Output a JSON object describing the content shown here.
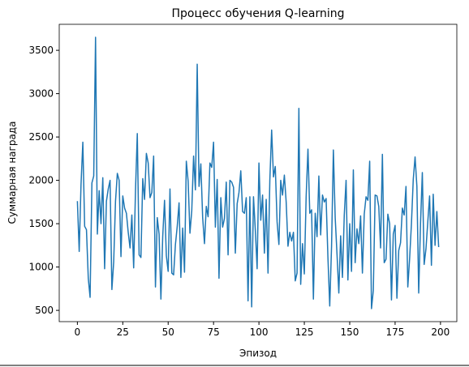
{
  "chart_data": {
    "type": "line",
    "title": "Процесс обучения Q-learning",
    "xlabel": "Эпизод",
    "ylabel": "Суммарная награда",
    "x": [
      0,
      1,
      2,
      3,
      4,
      5,
      6,
      7,
      8,
      9,
      10,
      11,
      12,
      13,
      14,
      15,
      16,
      17,
      18,
      19,
      20,
      21,
      22,
      23,
      24,
      25,
      26,
      27,
      28,
      29,
      30,
      31,
      32,
      33,
      34,
      35,
      36,
      37,
      38,
      39,
      40,
      41,
      42,
      43,
      44,
      45,
      46,
      47,
      48,
      49,
      50,
      51,
      52,
      53,
      54,
      55,
      56,
      57,
      58,
      59,
      60,
      61,
      62,
      63,
      64,
      65,
      66,
      67,
      68,
      69,
      70,
      71,
      72,
      73,
      74,
      75,
      76,
      77,
      78,
      79,
      80,
      81,
      82,
      83,
      84,
      85,
      86,
      87,
      88,
      89,
      90,
      91,
      92,
      93,
      94,
      95,
      96,
      97,
      98,
      99,
      100,
      101,
      102,
      103,
      104,
      105,
      106,
      107,
      108,
      109,
      110,
      111,
      112,
      113,
      114,
      115,
      116,
      117,
      118,
      119,
      120,
      121,
      122,
      123,
      124,
      125,
      126,
      127,
      128,
      129,
      130,
      131,
      132,
      133,
      134,
      135,
      136,
      137,
      138,
      139,
      140,
      141,
      142,
      143,
      144,
      145,
      146,
      147,
      148,
      149,
      150,
      151,
      152,
      153,
      154,
      155,
      156,
      157,
      158,
      159,
      160,
      161,
      162,
      163,
      164,
      165,
      166,
      167,
      168,
      169,
      170,
      171,
      172,
      173,
      174,
      175,
      176,
      177,
      178,
      179,
      180,
      181,
      182,
      183,
      184,
      185,
      186,
      187,
      188,
      189,
      190,
      191,
      192,
      193,
      194,
      195,
      196,
      197,
      198,
      199
    ],
    "series": [
      {
        "name": "Суммарная награда",
        "color": "#1f77b4",
        "values": [
          1760,
          1180,
          1950,
          2440,
          1470,
          1430,
          870,
          650,
          1970,
          2050,
          3650,
          1380,
          1880,
          1500,
          2030,
          980,
          1760,
          1900,
          2000,
          740,
          1060,
          1760,
          2080,
          2000,
          1120,
          1820,
          1680,
          1620,
          1400,
          1220,
          1600,
          990,
          1880,
          2540,
          1140,
          1110,
          2020,
          1780,
          2310,
          2200,
          1800,
          1860,
          2280,
          770,
          1570,
          1380,
          630,
          1350,
          1770,
          1130,
          950,
          1900,
          930,
          910,
          1260,
          1470,
          1740,
          880,
          1450,
          940,
          2220,
          1990,
          1390,
          1650,
          2280,
          1890,
          3340,
          1930,
          2190,
          1570,
          1270,
          1700,
          1580,
          2200,
          2150,
          2440,
          1460,
          2010,
          870,
          1800,
          1460,
          1560,
          1980,
          1140,
          2000,
          1980,
          1920,
          1160,
          1730,
          1860,
          2110,
          1640,
          1620,
          1800,
          610,
          1810,
          540,
          1810,
          1430,
          980,
          2200,
          1540,
          1830,
          1160,
          1780,
          930,
          2000,
          2580,
          2040,
          2160,
          1520,
          1260,
          2000,
          1830,
          2060,
          1750,
          1240,
          1400,
          1300,
          1400,
          840,
          930,
          2830,
          800,
          1270,
          920,
          1810,
          2360,
          1620,
          1660,
          630,
          1620,
          1350,
          2050,
          1370,
          1830,
          1750,
          1790,
          1110,
          550,
          1240,
          2350,
          1570,
          1150,
          700,
          1360,
          880,
          1600,
          2000,
          850,
          1500,
          950,
          2120,
          1050,
          1440,
          1270,
          1590,
          930,
          1610,
          1810,
          1770,
          2220,
          520,
          730,
          1830,
          1820,
          1700,
          1220,
          2300,
          1050,
          1090,
          1610,
          1500,
          620,
          1380,
          1480,
          640,
          1190,
          1280,
          1680,
          1600,
          1930,
          770,
          1100,
          1500,
          2010,
          2270,
          1930,
          700,
          1500,
          2090,
          1030,
          1210,
          1520,
          1820,
          1020,
          1840,
          1250,
          1640,
          1230
        ]
      }
    ],
    "xlim": [
      -10,
      209
    ],
    "ylim": [
      370,
      3800
    ],
    "xticks": [
      0,
      25,
      50,
      75,
      100,
      125,
      150,
      175,
      200
    ],
    "yticks": [
      500,
      1000,
      1500,
      2000,
      2500,
      3000,
      3500
    ]
  }
}
